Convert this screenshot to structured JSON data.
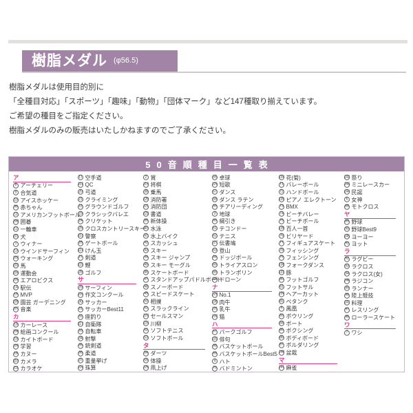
{
  "colors": {
    "purple": "#a184a6",
    "pink": "#e5368c",
    "border": "#c5b8c8"
  },
  "header": {
    "title": "樹脂メダル",
    "diameter": "(φ56.5)"
  },
  "intro": [
    "樹脂メダルは使用目的別に",
    "「全種目対応」「スポーツ」「趣味」「動物」「団体マーク」など147種取り揃えています。",
    "ご希望の種目をご指定ください。",
    "樹脂メダルのみの販売はいたしかねますのでご了承ください。"
  ],
  "table": {
    "title": "50音順種目一覧表",
    "columns": [
      {
        "rows": [
          {
            "type": "h",
            "label": "ア"
          },
          {
            "type": "i",
            "num": 8,
            "label": "アーチェリー"
          },
          {
            "type": "i",
            "num": 9,
            "label": "合気道"
          },
          {
            "type": "i",
            "num": 10,
            "label": "アイスホッケー"
          },
          {
            "type": "i",
            "num": 99,
            "label": "赤ちゃん"
          },
          {
            "type": "i",
            "num": 11,
            "label": "アメリカンフットボール"
          },
          {
            "type": "i",
            "num": 100,
            "label": "囲碁"
          },
          {
            "type": "i",
            "num": 12,
            "label": "一輪車"
          },
          {
            "type": "i",
            "num": 101,
            "label": "犬"
          },
          {
            "type": "i",
            "num": 1,
            "label": "ウィナー"
          },
          {
            "type": "i",
            "num": 13,
            "label": "ウインドサーフィン"
          },
          {
            "type": "i",
            "num": 102,
            "label": "ウォーキング"
          },
          {
            "type": "i",
            "num": 103,
            "label": "馬"
          },
          {
            "type": "i",
            "num": 104,
            "label": "運動会"
          },
          {
            "type": "i",
            "num": 105,
            "label": "エアロビクス"
          },
          {
            "type": "i",
            "num": 14,
            "label": "駅伝"
          },
          {
            "type": "i",
            "num": 16,
            "label": "MVP"
          },
          {
            "type": "i",
            "num": 106,
            "label": "園芸 ガーデニング"
          },
          {
            "type": "i",
            "num": 107,
            "label": "音楽"
          },
          {
            "type": "h",
            "label": "カ"
          },
          {
            "type": "i",
            "num": 15,
            "label": "カーレース"
          },
          {
            "type": "i",
            "num": 108,
            "label": "絵画コンクール"
          },
          {
            "type": "i",
            "num": 19,
            "label": "カイトボード"
          },
          {
            "type": "i",
            "num": 109,
            "label": "学習"
          },
          {
            "type": "i",
            "num": 18,
            "label": "カヌー"
          },
          {
            "type": "i",
            "num": 110,
            "label": "カメラ"
          },
          {
            "type": "i",
            "num": 111,
            "label": "カラオケ"
          }
        ]
      },
      {
        "rows": [
          {
            "type": "i",
            "num": 17,
            "label": "空手道"
          },
          {
            "type": "i",
            "num": 112,
            "label": "QC"
          },
          {
            "type": "i",
            "num": 20,
            "label": "弓道"
          },
          {
            "type": "i",
            "num": 21,
            "label": "クライミング"
          },
          {
            "type": "i",
            "num": 22,
            "label": "グラウンドゴルフ"
          },
          {
            "type": "i",
            "num": 23,
            "label": "クラシックバレエ"
          },
          {
            "type": "i",
            "num": 24,
            "label": "クリケット"
          },
          {
            "type": "i",
            "num": 25,
            "label": "クロスカントリースキー"
          },
          {
            "type": "i",
            "num": 113,
            "label": "警察"
          },
          {
            "type": "i",
            "num": 26,
            "label": "ゲートボール"
          },
          {
            "type": "i",
            "num": 114,
            "label": "けん玉"
          },
          {
            "type": "i",
            "num": 27,
            "label": "剣道"
          },
          {
            "type": "i",
            "num": 115,
            "label": "鯉"
          },
          {
            "type": "i",
            "num": 28,
            "label": "ゴルフ"
          },
          {
            "type": "h",
            "label": "サ"
          },
          {
            "type": "i",
            "num": 29,
            "label": "サーフィン"
          },
          {
            "type": "i",
            "num": 116,
            "label": "作文コンクール"
          },
          {
            "type": "i",
            "num": 30,
            "label": "サッカー"
          },
          {
            "type": "i",
            "num": 31,
            "label": "サッカーBest11"
          },
          {
            "type": "i",
            "num": 32,
            "label": "座釣り"
          },
          {
            "type": "i",
            "num": 117,
            "label": "自衛隊"
          },
          {
            "type": "i",
            "num": 33,
            "label": "自転車"
          },
          {
            "type": "i",
            "num": 34,
            "label": "射撃"
          },
          {
            "type": "i",
            "num": 35,
            "label": "銃剣道"
          },
          {
            "type": "i",
            "num": 36,
            "label": "柔道"
          },
          {
            "type": "i",
            "num": 37,
            "label": "重量挙げ"
          },
          {
            "type": "i",
            "num": 118,
            "label": "珠算"
          }
        ]
      },
      {
        "rows": [
          {
            "type": "i",
            "num": 2,
            "label": "賞"
          },
          {
            "type": "i",
            "num": 119,
            "label": "将棋"
          },
          {
            "type": "i",
            "num": 38,
            "label": "乗馬"
          },
          {
            "type": "i",
            "num": 120,
            "label": "消防署"
          },
          {
            "type": "i",
            "num": 121,
            "label": "消防団"
          },
          {
            "type": "i",
            "num": 122,
            "label": "書道"
          },
          {
            "type": "i",
            "num": 39,
            "label": "新体操"
          },
          {
            "type": "i",
            "num": 40,
            "label": "水泳"
          },
          {
            "type": "i",
            "num": 41,
            "label": "水上バイク"
          },
          {
            "type": "i",
            "num": 42,
            "label": "スカッシュ"
          },
          {
            "type": "i",
            "num": 43,
            "label": "スキー"
          },
          {
            "type": "i",
            "num": 44,
            "label": "スキー ジャンプ"
          },
          {
            "type": "i",
            "num": 45,
            "label": "スキー モーグル"
          },
          {
            "type": "i",
            "num": 46,
            "label": "スケートボード"
          },
          {
            "type": "i",
            "num": 47,
            "label": "スタンドアップパドルボード"
          },
          {
            "type": "i",
            "num": 48,
            "label": "スノーボード"
          },
          {
            "type": "i",
            "num": 49,
            "label": "スピードスケート"
          },
          {
            "type": "i",
            "num": 50,
            "label": "相撲"
          },
          {
            "type": "i",
            "num": 51,
            "label": "スラックライン"
          },
          {
            "type": "i",
            "num": 123,
            "label": "セールスマン"
          },
          {
            "type": "i",
            "num": 124,
            "label": "川柳"
          },
          {
            "type": "i",
            "num": 52,
            "label": "ソフトテニス"
          },
          {
            "type": "i",
            "num": 53,
            "label": "ソフトボール"
          },
          {
            "type": "h",
            "label": "タ"
          },
          {
            "type": "i",
            "num": 54,
            "label": "ダーツ"
          },
          {
            "type": "i",
            "num": 55,
            "label": "体操"
          },
          {
            "type": "i",
            "num": 126,
            "label": "凧上げ"
          }
        ]
      },
      {
        "rows": [
          {
            "type": "i",
            "num": 56,
            "label": "卓球"
          },
          {
            "type": "i",
            "num": 125,
            "label": "短歌"
          },
          {
            "type": "i",
            "num": 57,
            "label": "ダンス"
          },
          {
            "type": "i",
            "num": 58,
            "label": "ダンス ラテン"
          },
          {
            "type": "i",
            "num": 59,
            "label": "チアリーディング"
          },
          {
            "type": "i",
            "num": 3,
            "label": "地球"
          },
          {
            "type": "i",
            "num": 60,
            "label": "綱引き"
          },
          {
            "type": "i",
            "num": 61,
            "label": "テコンドー"
          },
          {
            "type": "i",
            "num": 62,
            "label": "テニス"
          },
          {
            "type": "i",
            "num": 127,
            "label": "伝書鳩"
          },
          {
            "type": "i",
            "num": 63,
            "label": "登山"
          },
          {
            "type": "i",
            "num": 64,
            "label": "ドッジボール"
          },
          {
            "type": "i",
            "num": 65,
            "label": "トライアスロン"
          },
          {
            "type": "i",
            "num": 66,
            "label": "トランポリン"
          },
          {
            "type": "i",
            "num": 128,
            "label": "ドローン"
          },
          {
            "type": "h",
            "label": "ナ"
          },
          {
            "type": "i",
            "num": 129,
            "label": "No.1"
          },
          {
            "type": "i",
            "num": 130,
            "label": "肉牛"
          },
          {
            "type": "i",
            "num": 131,
            "label": "乳牛"
          },
          {
            "type": "i",
            "num": 132,
            "label": "猫"
          },
          {
            "type": "h",
            "label": "ハ"
          },
          {
            "type": "i",
            "num": 67,
            "label": "パークゴルフ"
          },
          {
            "type": "i",
            "num": 133,
            "label": "俳句"
          },
          {
            "type": "i",
            "num": 68,
            "label": "バスケットボール"
          },
          {
            "type": "i",
            "num": 69,
            "label": "バスケットボールBest5"
          },
          {
            "type": "i",
            "num": 4,
            "label": "ハト"
          },
          {
            "type": "i",
            "num": 70,
            "label": "バドミントン"
          }
        ]
      },
      {
        "rows": [
          {
            "type": "i",
            "num": 134,
            "label": "花(菊)"
          },
          {
            "type": "i",
            "num": 71,
            "label": "バレーボール"
          },
          {
            "type": "i",
            "num": 72,
            "label": "ハンドボール"
          },
          {
            "type": "i",
            "num": 135,
            "label": "ピアノ エレクトーン"
          },
          {
            "type": "i",
            "num": 73,
            "label": "BMX"
          },
          {
            "type": "i",
            "num": 74,
            "label": "ビーチバレー"
          },
          {
            "type": "i",
            "num": 75,
            "label": "ビーチボール"
          },
          {
            "type": "i",
            "num": 136,
            "label": "百人一首"
          },
          {
            "type": "i",
            "num": 76,
            "label": "ビリヤード"
          },
          {
            "type": "i",
            "num": 77,
            "label": "フィギュアスケート"
          },
          {
            "type": "i",
            "num": 78,
            "label": "フィッシング"
          },
          {
            "type": "i",
            "num": 79,
            "label": "フェンシング"
          },
          {
            "type": "i",
            "num": 138,
            "label": "フォークダンス"
          },
          {
            "type": "i",
            "num": 137,
            "label": "豚"
          },
          {
            "type": "i",
            "num": 80,
            "label": "フットゴルフ"
          },
          {
            "type": "i",
            "num": 81,
            "label": "フットサル"
          },
          {
            "type": "i",
            "num": 139,
            "label": "ヘアーカット"
          },
          {
            "type": "i",
            "num": 82,
            "label": "ペタンク"
          },
          {
            "type": "i",
            "num": 5,
            "label": "鳳凰"
          },
          {
            "type": "i",
            "num": 83,
            "label": "ボウリング"
          },
          {
            "type": "i",
            "num": 84,
            "label": "ボート"
          },
          {
            "type": "i",
            "num": 85,
            "label": "ボクシング"
          },
          {
            "type": "i",
            "num": 86,
            "label": "ボディボード"
          },
          {
            "type": "i",
            "num": 87,
            "label": "ボルダリング"
          },
          {
            "type": "i",
            "num": 140,
            "label": "盆栽"
          },
          {
            "type": "h",
            "label": "マ"
          },
          {
            "type": "i",
            "num": 141,
            "label": "麻雀"
          }
        ]
      },
      {
        "rows": [
          {
            "type": "i",
            "num": 142,
            "label": "祭り"
          },
          {
            "type": "i",
            "num": 143,
            "label": "ミニレースカー"
          },
          {
            "type": "i",
            "num": 144,
            "label": "民謡"
          },
          {
            "type": "i",
            "num": 6,
            "label": "女神"
          },
          {
            "type": "i",
            "num": 88,
            "label": "モトクロス"
          },
          {
            "type": "h",
            "label": "ヤ"
          },
          {
            "type": "i",
            "num": 89,
            "label": "野球"
          },
          {
            "type": "i",
            "num": 90,
            "label": "野球Best9"
          },
          {
            "type": "i",
            "num": 145,
            "label": "ヨーヨー"
          },
          {
            "type": "i",
            "num": 91,
            "label": "ヨット"
          },
          {
            "type": "h",
            "label": "ラ"
          },
          {
            "type": "i",
            "num": 92,
            "label": "ラグビー"
          },
          {
            "type": "i",
            "num": 93,
            "label": "ラクロス"
          },
          {
            "type": "i",
            "num": 94,
            "label": "ラクロス(女)"
          },
          {
            "type": "i",
            "num": 146,
            "label": "ラジコン"
          },
          {
            "type": "i",
            "num": 95,
            "label": "ランナー"
          },
          {
            "type": "i",
            "num": 96,
            "label": "陸上競技"
          },
          {
            "type": "i",
            "num": 147,
            "label": "料理"
          },
          {
            "type": "i",
            "num": 97,
            "label": "レスリング"
          },
          {
            "type": "i",
            "num": 98,
            "label": "ローラースケート"
          },
          {
            "type": "h",
            "label": "ワ"
          },
          {
            "type": "i",
            "num": 7,
            "label": "ワシ"
          }
        ]
      }
    ]
  }
}
